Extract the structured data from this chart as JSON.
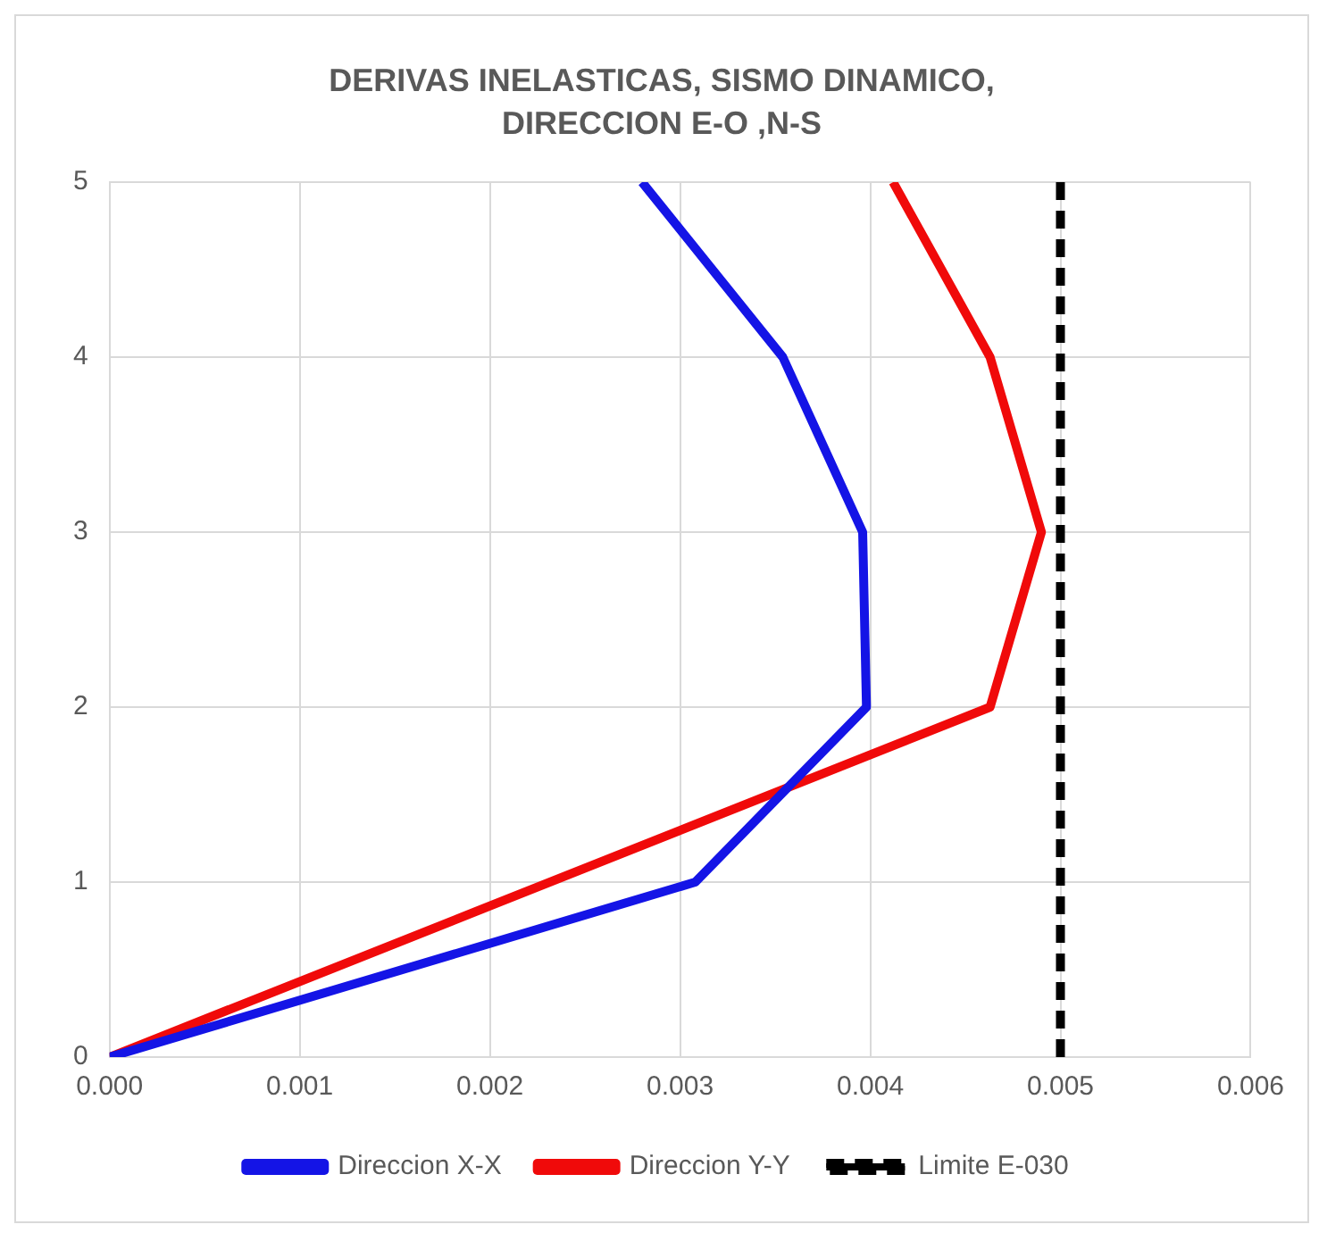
{
  "chart_data": {
    "type": "line",
    "title": "DERIVAS INELASTICAS, SISMO DINAMICO, DIRECCION E-O ,N-S",
    "series": [
      {
        "name": "Direccion X-X",
        "color": "#1414e6",
        "x": [
          0,
          0.00308,
          0.00398,
          0.00396,
          0.00354,
          0.0028
        ],
        "values": [
          0,
          1,
          2,
          3,
          4,
          5
        ]
      },
      {
        "name": "Direccion Y-Y",
        "color": "#f00a0a",
        "x": [
          0,
          0.00463,
          0.0049,
          0.00463,
          0.00412
        ],
        "values": [
          0,
          2,
          3,
          4,
          5
        ]
      },
      {
        "name": "Limite E-030",
        "color": "#000000",
        "x": [
          0.005,
          0.005
        ],
        "values": [
          0,
          5
        ],
        "line_style": "dashed"
      }
    ],
    "xlim": [
      0,
      0.006
    ],
    "xticks": [
      {
        "value": 0,
        "label": "0.000"
      },
      {
        "value": 0.001,
        "label": "0.001"
      },
      {
        "value": 0.002,
        "label": "0.002"
      },
      {
        "value": 0.003,
        "label": "0.003"
      },
      {
        "value": 0.004,
        "label": "0.004"
      },
      {
        "value": 0.005,
        "label": "0.005"
      },
      {
        "value": 0.006,
        "label": "0.006"
      }
    ],
    "ylim": [
      0,
      5
    ],
    "yticks": [
      0,
      1,
      2,
      3,
      4,
      5
    ],
    "grid": true,
    "legend": "bottom",
    "marker": "none",
    "line_style": "solid"
  }
}
